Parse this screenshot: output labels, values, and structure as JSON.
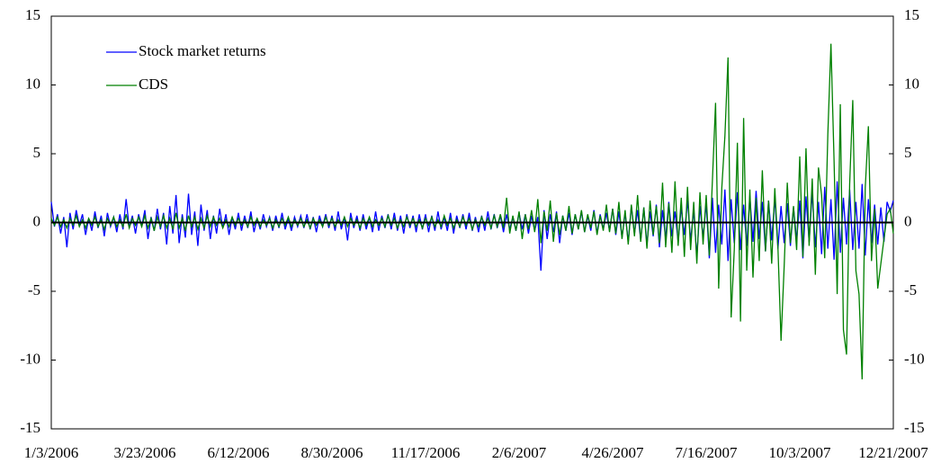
{
  "chart_data": {
    "type": "line",
    "categories": [
      "1/3/2006",
      null,
      null,
      null,
      null,
      null,
      null,
      null,
      null,
      null,
      null,
      null,
      null,
      null,
      null,
      null,
      null,
      null,
      null,
      null,
      null,
      null,
      null,
      null,
      null,
      null,
      null,
      null,
      null,
      null,
      "3/23/2006",
      null,
      null,
      null,
      null,
      null,
      null,
      null,
      null,
      null,
      null,
      null,
      null,
      null,
      null,
      null,
      null,
      null,
      null,
      null,
      null,
      null,
      null,
      null,
      null,
      null,
      null,
      null,
      null,
      null,
      "6/12/2006",
      null,
      null,
      null,
      null,
      null,
      null,
      null,
      null,
      null,
      null,
      null,
      null,
      null,
      null,
      null,
      null,
      null,
      null,
      null,
      null,
      null,
      null,
      null,
      null,
      null,
      null,
      null,
      null,
      null,
      "8/30/2006",
      null,
      null,
      null,
      null,
      null,
      null,
      null,
      null,
      null,
      null,
      null,
      null,
      null,
      null,
      null,
      null,
      null,
      null,
      null,
      null,
      null,
      null,
      null,
      null,
      null,
      null,
      null,
      null,
      null,
      "11/17/2006",
      null,
      null,
      null,
      null,
      null,
      null,
      null,
      null,
      null,
      null,
      null,
      null,
      null,
      null,
      null,
      null,
      null,
      null,
      null,
      null,
      null,
      null,
      null,
      null,
      null,
      null,
      null,
      null,
      null,
      "2/6/2007",
      null,
      null,
      null,
      null,
      null,
      null,
      null,
      null,
      null,
      null,
      null,
      null,
      null,
      null,
      null,
      null,
      null,
      null,
      null,
      null,
      null,
      null,
      null,
      null,
      null,
      null,
      null,
      null,
      null,
      "4/26/2007",
      null,
      null,
      null,
      null,
      null,
      null,
      null,
      null,
      null,
      null,
      null,
      null,
      null,
      null,
      null,
      null,
      null,
      null,
      null,
      null,
      null,
      null,
      null,
      null,
      null,
      null,
      null,
      null,
      null,
      "7/16/2007",
      null,
      null,
      null,
      null,
      null,
      null,
      null,
      null,
      null,
      null,
      null,
      null,
      null,
      null,
      null,
      null,
      null,
      null,
      null,
      null,
      null,
      null,
      null,
      null,
      null,
      null,
      null,
      null,
      null,
      "10/3/2007",
      null,
      null,
      null,
      null,
      null,
      null,
      null,
      null,
      null,
      null,
      null,
      null,
      null,
      null,
      null,
      null,
      null,
      null,
      null,
      null,
      null,
      null,
      null,
      null,
      null,
      null,
      null,
      null,
      null,
      "12/21/2007"
    ],
    "series": [
      {
        "name": "Stock market returns",
        "color": "#0000ff",
        "values": [
          1.5,
          -0.3,
          0.6,
          -0.8,
          0.4,
          -1.8,
          0.7,
          -0.5,
          0.9,
          -0.2,
          0.6,
          -0.9,
          0.3,
          -0.6,
          0.8,
          -0.4,
          0.5,
          -1.0,
          0.7,
          -0.3,
          0.4,
          -0.7,
          0.6,
          -0.5,
          1.7,
          -0.4,
          0.5,
          -0.8,
          0.6,
          -0.3,
          0.9,
          -1.2,
          0.4,
          -0.6,
          1.0,
          -0.5,
          0.7,
          -1.6,
          1.2,
          -0.8,
          2.0,
          -1.5,
          0.6,
          -1.1,
          2.1,
          -0.9,
          0.8,
          -1.7,
          1.3,
          -0.6,
          0.9,
          -1.2,
          0.5,
          -0.8,
          1.0,
          -0.4,
          0.6,
          -0.9,
          0.4,
          -0.5,
          0.7,
          -0.6,
          0.5,
          -0.4,
          0.8,
          -0.7,
          0.3,
          -0.5,
          0.6,
          -0.3,
          0.4,
          -0.6,
          0.5,
          -0.4,
          0.7,
          -0.5,
          0.3,
          -0.6,
          0.4,
          -0.3,
          0.5,
          -0.4,
          0.6,
          -0.5,
          0.4,
          -0.7,
          0.5,
          -0.3,
          0.6,
          -0.4,
          0.5,
          -0.6,
          0.8,
          -0.5,
          0.4,
          -1.3,
          0.7,
          -0.4,
          0.5,
          -0.6,
          0.6,
          -0.5,
          0.4,
          -0.7,
          0.8,
          -0.6,
          0.5,
          -0.4,
          0.6,
          -0.5,
          0.7,
          -0.6,
          0.5,
          -0.8,
          0.6,
          -0.4,
          0.5,
          -0.7,
          0.6,
          -0.5,
          0.6,
          -0.7,
          0.5,
          -0.6,
          0.8,
          -0.5,
          0.4,
          -0.6,
          0.7,
          -0.8,
          0.5,
          -0.4,
          0.6,
          -0.5,
          0.7,
          -0.6,
          0.4,
          -0.7,
          0.5,
          -0.6,
          0.8,
          -0.5,
          0.6,
          -0.4,
          0.5,
          -0.7,
          0.6,
          -0.5,
          0.4,
          -0.6,
          0.7,
          -0.5,
          0.6,
          -0.8,
          0.5,
          -0.6,
          0.4,
          -3.5,
          0.9,
          -1.2,
          0.6,
          -0.7,
          0.8,
          -1.5,
          0.5,
          -0.6,
          0.7,
          -0.9,
          0.6,
          -0.5,
          0.8,
          -0.7,
          0.5,
          -0.6,
          0.9,
          -0.8,
          0.6,
          -0.5,
          0.7,
          -0.6,
          1.0,
          -0.9,
          0.8,
          -1.1,
          0.7,
          -1.4,
          1.2,
          -0.8,
          0.9,
          -1.3,
          1.1,
          -1.6,
          0.8,
          -1.0,
          1.3,
          -1.8,
          0.9,
          -1.2,
          1.5,
          -1.0,
          0.8,
          -1.4,
          1.1,
          -0.9,
          1.6,
          -1.3,
          0.9,
          -2.5,
          1.2,
          -1.1,
          1.4,
          -2.6,
          1.8,
          -2.2,
          1.3,
          -1.6,
          2.4,
          -2.8,
          1.7,
          -1.5,
          2.2,
          -2.0,
          1.3,
          -1.7,
          1.9,
          -1.4,
          2.3,
          -1.2,
          1.5,
          -2.1,
          1.6,
          -1.3,
          1.8,
          -1.9,
          1.2,
          -1.5,
          1.4,
          -1.7,
          1.1,
          -1.3,
          1.6,
          -2.6,
          1.9,
          -1.4,
          2.2,
          -1.8,
          1.5,
          -2.3,
          2.6,
          -1.9,
          1.7,
          -2.7,
          3.0,
          -2.2,
          1.8,
          -1.6,
          2.4,
          -2.0,
          1.5,
          -1.9,
          2.8,
          -2.4,
          1.7,
          -1.5,
          1.3,
          -1.6,
          1.1,
          -1.4,
          1.5,
          0.8,
          1.6
        ]
      },
      {
        "name": "CDS",
        "color": "#008000",
        "values": [
          0.3,
          -0.2,
          0.4,
          -0.3,
          0.2,
          -0.4,
          0.3,
          -0.2,
          0.5,
          -0.3,
          0.2,
          -0.4,
          0.3,
          -0.2,
          0.4,
          -0.3,
          0.2,
          -0.5,
          0.3,
          -0.2,
          0.4,
          -0.3,
          0.2,
          -0.3,
          0.6,
          -0.4,
          0.3,
          -0.2,
          0.4,
          -0.3,
          0.5,
          -0.4,
          0.3,
          -0.6,
          0.4,
          -0.3,
          0.5,
          -0.4,
          0.3,
          -0.5,
          0.7,
          -0.4,
          0.3,
          -0.6,
          0.5,
          -0.3,
          0.4,
          -0.5,
          0.3,
          -0.4,
          0.5,
          -0.3,
          0.4,
          -0.2,
          0.3,
          -0.4,
          0.2,
          -0.3,
          0.4,
          -0.2,
          0.3,
          -0.2,
          0.2,
          -0.3,
          0.4,
          -0.2,
          0.3,
          -0.3,
          0.2,
          -0.2,
          0.3,
          -0.4,
          0.2,
          -0.3,
          0.3,
          -0.2,
          0.4,
          -0.3,
          0.2,
          -0.2,
          0.3,
          -0.3,
          0.2,
          -0.4,
          0.3,
          -0.2,
          0.2,
          -0.3,
          0.4,
          -0.2,
          0.3,
          -0.3,
          0.2,
          -0.2,
          0.4,
          -0.3,
          0.3,
          -0.2,
          0.2,
          -0.4,
          0.3,
          -0.2,
          0.4,
          -0.3,
          0.2,
          -0.2,
          0.3,
          -0.3,
          0.5,
          -0.2,
          0.3,
          -0.4,
          0.2,
          -0.3,
          0.4,
          -0.2,
          0.3,
          -0.3,
          0.2,
          -0.4,
          0.3,
          -0.2,
          0.4,
          -0.3,
          0.2,
          -0.3,
          0.5,
          -0.2,
          0.3,
          -0.4,
          0.2,
          -0.3,
          0.4,
          -0.2,
          0.3,
          -0.5,
          0.2,
          -0.3,
          0.4,
          -0.2,
          0.3,
          -0.4,
          0.5,
          -0.3,
          0.6,
          -0.4,
          1.8,
          -0.8,
          0.5,
          -0.6,
          0.8,
          -1.2,
          0.6,
          -0.5,
          0.9,
          -0.7,
          1.7,
          -1.5,
          0.8,
          -0.6,
          1.6,
          -1.4,
          0.7,
          -0.9,
          0.5,
          -0.6,
          1.2,
          -0.8,
          0.6,
          -0.5,
          0.9,
          -0.7,
          0.6,
          -0.4,
          0.8,
          -0.9,
          0.5,
          -0.6,
          1.3,
          -0.7,
          1.0,
          -0.8,
          1.5,
          -1.2,
          0.9,
          -1.6,
          1.3,
          -1.0,
          2.0,
          -1.4,
          1.1,
          -1.9,
          1.6,
          -0.9,
          1.2,
          -1.5,
          2.9,
          -1.8,
          1.4,
          -2.2,
          3.0,
          -1.7,
          1.8,
          -2.5,
          2.6,
          -2.0,
          1.5,
          -3.0,
          2.2,
          -1.6,
          2.0,
          -2.4,
          3.1,
          8.7,
          -4.8,
          2.5,
          6.3,
          12.0,
          -6.9,
          -2.0,
          5.8,
          -7.2,
          7.6,
          -3.5,
          2.4,
          -4.0,
          1.8,
          -2.8,
          3.8,
          -2.1,
          1.6,
          -3.0,
          2.5,
          -1.8,
          -8.6,
          -3.2,
          2.9,
          -1.5,
          1.2,
          -2.0,
          4.8,
          -2.5,
          5.4,
          -1.7,
          3.2,
          -3.8,
          4.0,
          2.0,
          -2.6,
          6.4,
          13.0,
          4.5,
          -5.2,
          8.6,
          -7.8,
          -9.6,
          2.8,
          8.9,
          -3.5,
          -5.2,
          -11.4,
          2.5,
          7.0,
          -2.8,
          1.0,
          -4.8,
          -3.0,
          -1.2,
          0.6,
          1.0,
          -0.8
        ]
      }
    ],
    "ylim": [
      -15,
      15
    ],
    "yticks": [
      -15,
      -10,
      -5,
      0,
      5,
      10,
      15
    ],
    "y2lim": [
      -15,
      15
    ],
    "y2ticks": [
      -15,
      -10,
      -5,
      0,
      5,
      10,
      15
    ],
    "legend": "upper left"
  }
}
